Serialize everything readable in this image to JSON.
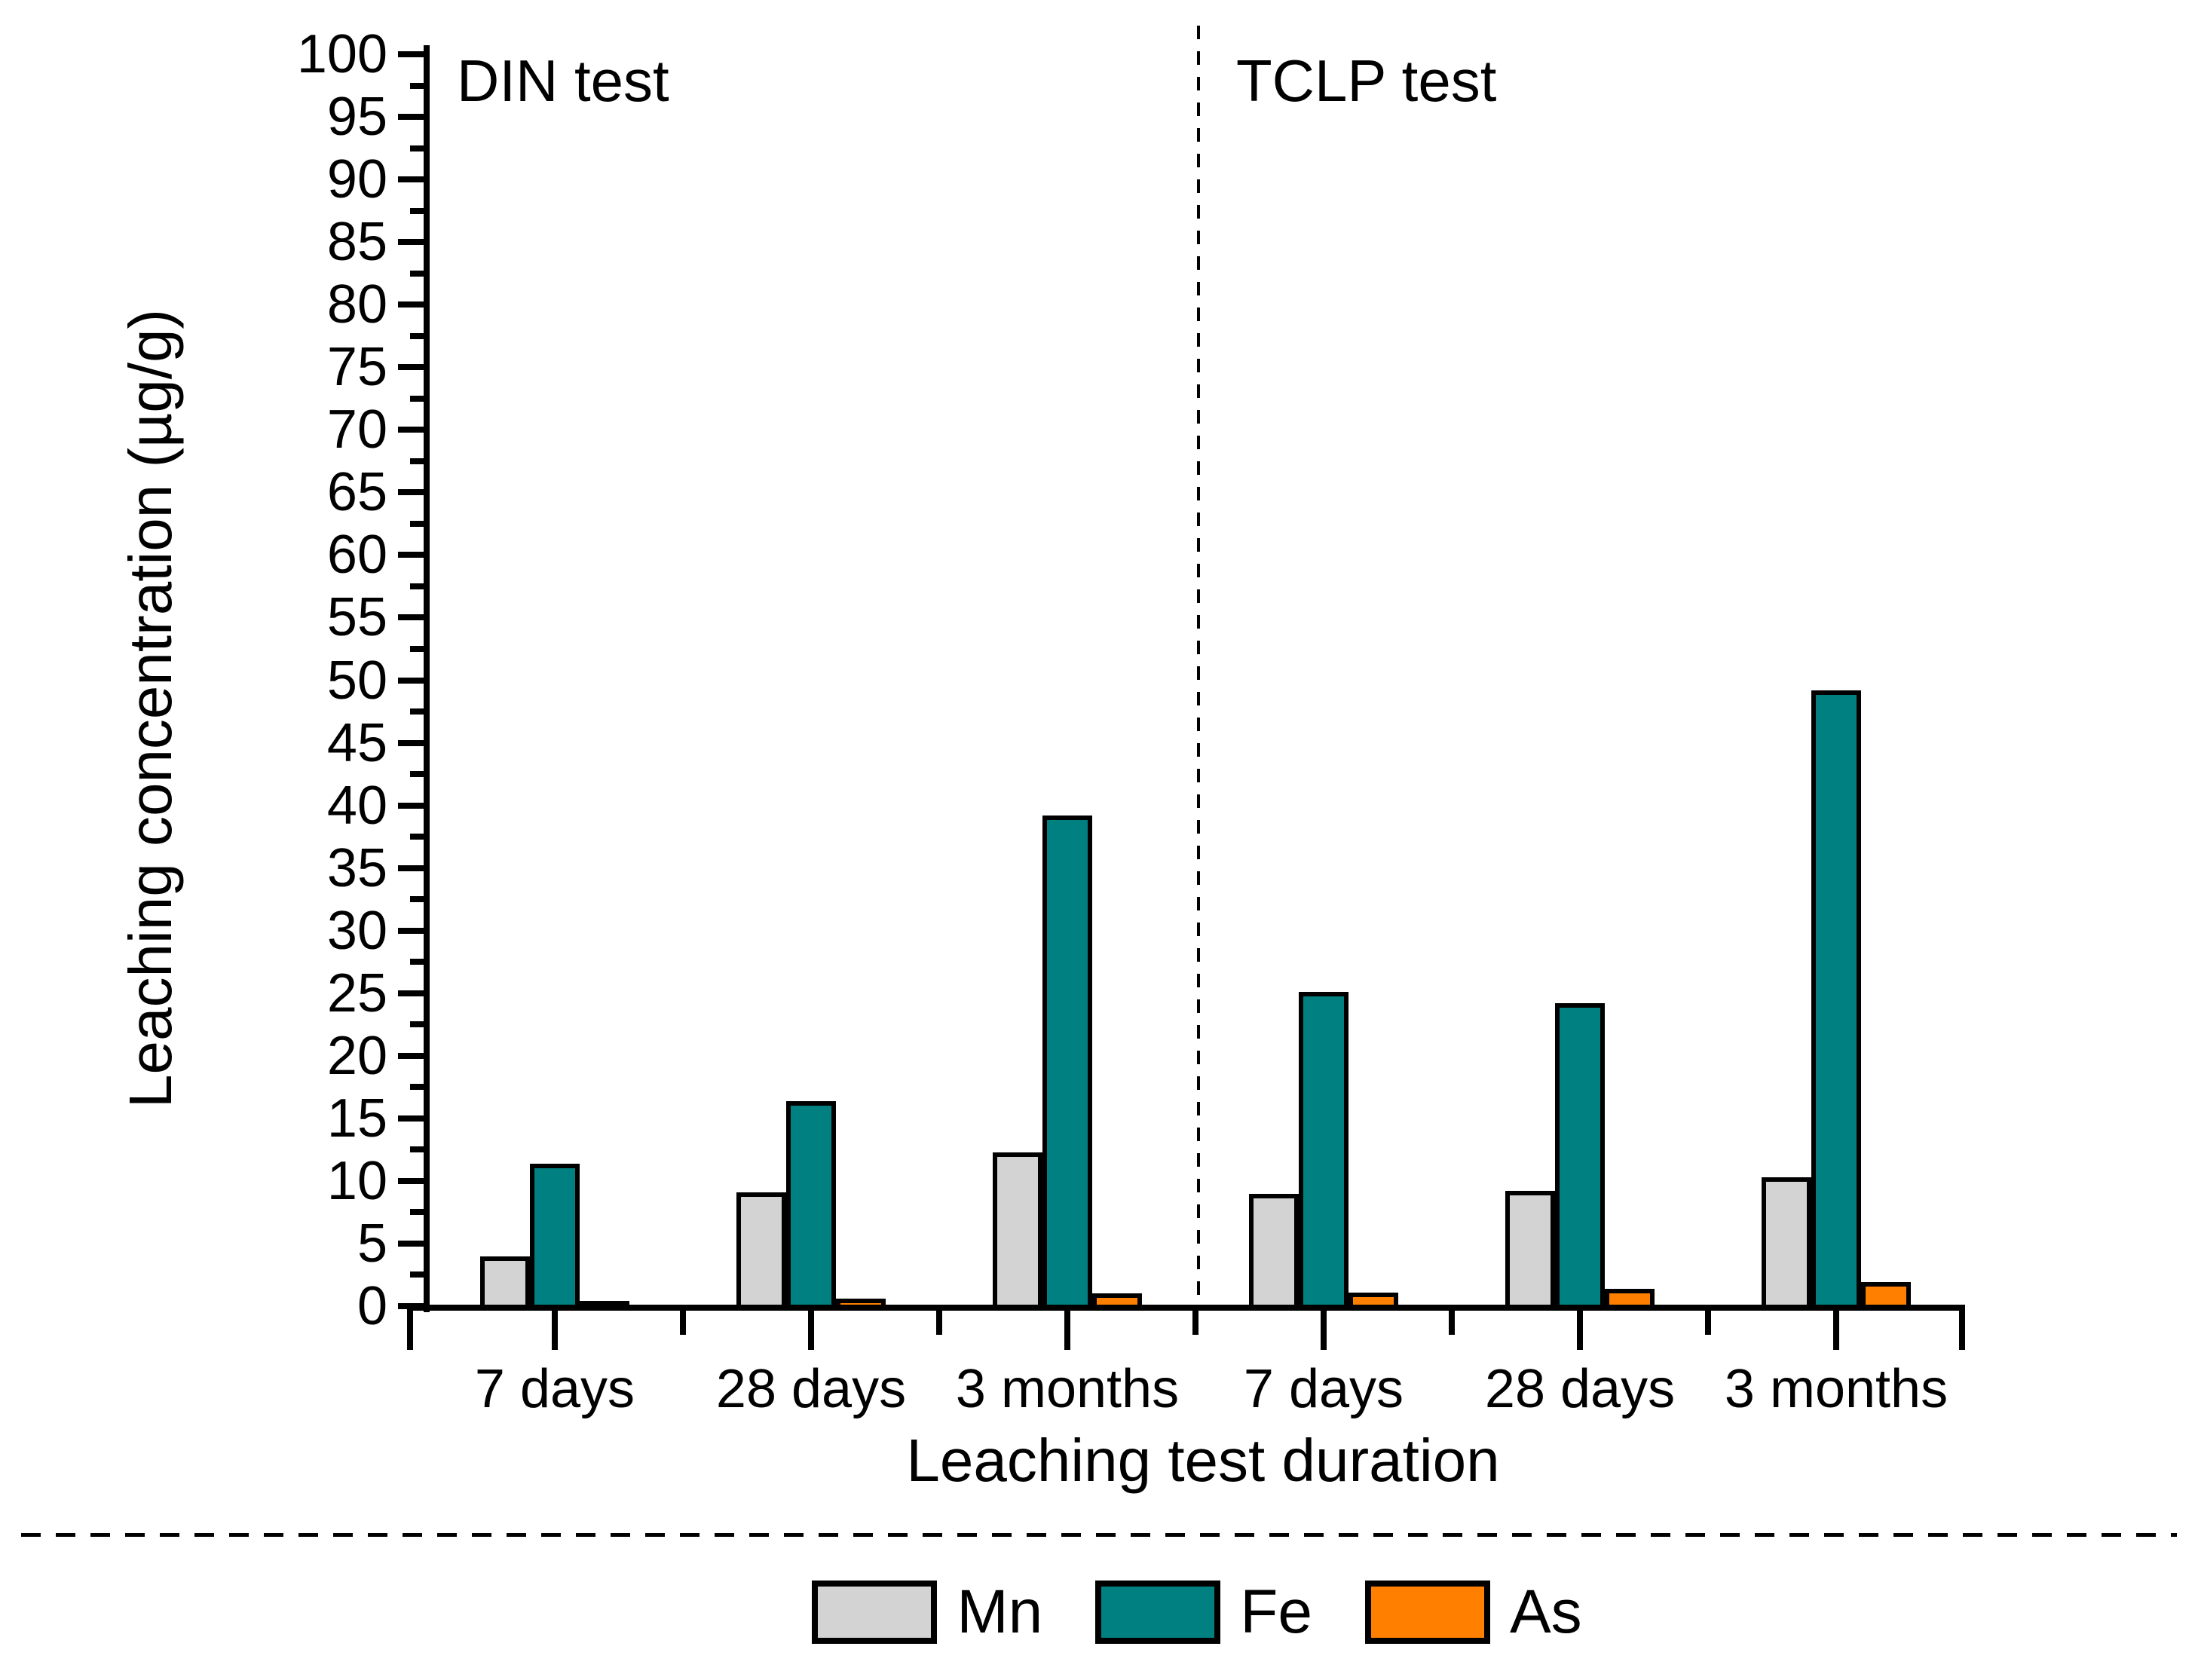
{
  "chart_data": {
    "type": "bar",
    "title": "",
    "xlabel": "Leaching test duration",
    "ylabel": "Leaching concentration (µg/g)",
    "ylim": [
      0,
      100
    ],
    "ytick_step": 5,
    "yminor_step": 2.5,
    "yticks": [
      0,
      5,
      10,
      15,
      20,
      25,
      30,
      35,
      40,
      45,
      50,
      55,
      60,
      65,
      70,
      75,
      80,
      85,
      90,
      95,
      100
    ],
    "grid": "off",
    "legend_position": "bottom-center",
    "categories": [
      "7 days",
      "28 days",
      "3 months",
      "7 days",
      "28 days",
      "3 months"
    ],
    "sections": [
      {
        "label": "DIN test",
        "category_indexes": [
          0,
          1,
          2
        ]
      },
      {
        "label": "TCLP test",
        "category_indexes": [
          3,
          4,
          5
        ]
      }
    ],
    "annotations": [
      {
        "text": "DIN test"
      },
      {
        "text": "TCLP test"
      }
    ],
    "series": [
      {
        "name": "Mn",
        "color": "#d3d3d3",
        "values": [
          4.0,
          9.1,
          12.3,
          9.0,
          9.2,
          10.3
        ]
      },
      {
        "name": "Fe",
        "color": "#008080",
        "values": [
          11.4,
          16.4,
          39.2,
          25.1,
          24.2,
          49.2
        ]
      },
      {
        "name": "As",
        "color": "#ff8000",
        "values": [
          0.4,
          0.6,
          1.0,
          1.1,
          1.4,
          1.9
        ]
      }
    ],
    "axis_color": "#000000",
    "background_color": "#ffffff"
  }
}
